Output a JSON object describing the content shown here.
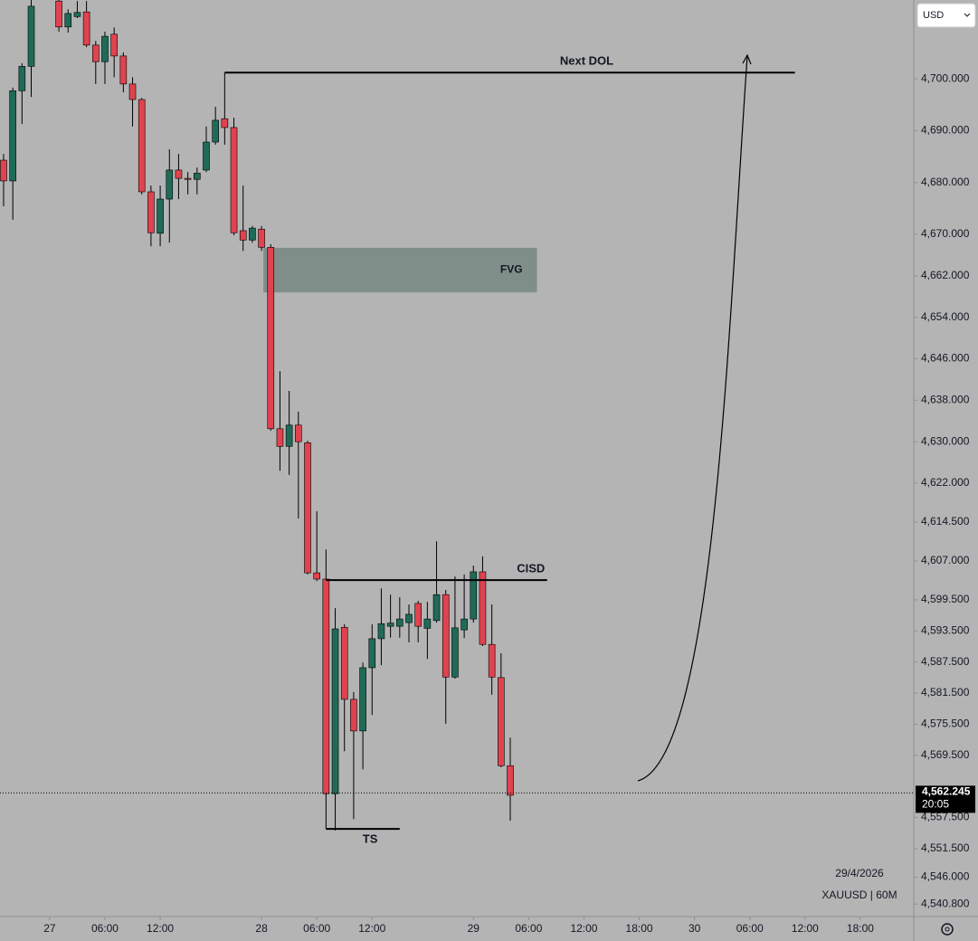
{
  "chart_data": {
    "type": "candlestick",
    "symbol": "XAUUSD | 60M",
    "date": "29/4/2026",
    "currency": "USD",
    "up_color": "#1f6b57",
    "down_color": "#e0434f",
    "xlim": [
      -0.39,
      98.8
    ],
    "ylim": [
      4538.4,
      4715.2
    ],
    "xticks": [
      {
        "value": 5,
        "label": "27"
      },
      {
        "value": 11,
        "label": "06:00"
      },
      {
        "value": 17,
        "label": "12:00"
      },
      {
        "value": 28,
        "label": "28"
      },
      {
        "value": 34,
        "label": "06:00"
      },
      {
        "value": 40,
        "label": "12:00"
      },
      {
        "value": 51,
        "label": "29"
      },
      {
        "value": 57,
        "label": "06:00"
      },
      {
        "value": 63,
        "label": "12:00"
      },
      {
        "value": 69,
        "label": "18:00"
      },
      {
        "value": 75,
        "label": "30"
      },
      {
        "value": 81,
        "label": "06:00"
      },
      {
        "value": 87,
        "label": "12:00"
      },
      {
        "value": 93,
        "label": "18:00"
      }
    ],
    "yticks": [
      {
        "value": 4700,
        "label": "4,700.000"
      },
      {
        "value": 4690,
        "label": "4,690.000"
      },
      {
        "value": 4680,
        "label": "4,680.000"
      },
      {
        "value": 4670,
        "label": "4,670.000"
      },
      {
        "value": 4662,
        "label": "4,662.000"
      },
      {
        "value": 4654,
        "label": "4,654.000"
      },
      {
        "value": 4646,
        "label": "4,646.000"
      },
      {
        "value": 4638,
        "label": "4,638.000"
      },
      {
        "value": 4630,
        "label": "4,630.000"
      },
      {
        "value": 4622,
        "label": "4,622.000"
      },
      {
        "value": 4614.5,
        "label": "4,614.500"
      },
      {
        "value": 4607,
        "label": "4,607.000"
      },
      {
        "value": 4599.5,
        "label": "4,599.500"
      },
      {
        "value": 4593.5,
        "label": "4,593.500"
      },
      {
        "value": 4587.5,
        "label": "4,587.500"
      },
      {
        "value": 4581.5,
        "label": "4,581.500"
      },
      {
        "value": 4575.5,
        "label": "4,575.500"
      },
      {
        "value": 4569.5,
        "label": "4,569.500"
      },
      {
        "value": 4557.5,
        "label": "4,557.500"
      },
      {
        "value": 4551.5,
        "label": "4,551.500"
      },
      {
        "value": 4546,
        "label": "4,546.000"
      },
      {
        "value": 4540.8,
        "label": "4,540.800"
      }
    ],
    "candles": [
      {
        "x": 0,
        "open": 4684.3,
        "high": 4685.5,
        "low": 4675.4,
        "close": 4680.3
      },
      {
        "x": 1,
        "open": 4680.3,
        "high": 4698.3,
        "low": 4672.8,
        "close": 4697.7
      },
      {
        "x": 2,
        "open": 4697.7,
        "high": 4703.0,
        "low": 4691.3,
        "close": 4702.4
      },
      {
        "x": 3,
        "open": 4702.4,
        "high": 4716,
        "low": 4696.5,
        "close": 4714
      },
      {
        "x": 6,
        "open": 4715,
        "high": 4716,
        "low": 4709.1,
        "close": 4710.0
      },
      {
        "x": 7,
        "open": 4710.0,
        "high": 4713.4,
        "low": 4708.9,
        "close": 4712.6
      },
      {
        "x": 8,
        "open": 4712.0,
        "high": 4715,
        "low": 4711.7,
        "close": 4712.8
      },
      {
        "x": 9,
        "open": 4712.9,
        "high": 4715,
        "low": 4706.1,
        "close": 4706.5
      },
      {
        "x": 10,
        "open": 4706.5,
        "high": 4707.3,
        "low": 4699.0,
        "close": 4703.3
      },
      {
        "x": 11,
        "open": 4703.3,
        "high": 4709.1,
        "low": 4699.0,
        "close": 4708.2
      },
      {
        "x": 12,
        "open": 4708.6,
        "high": 4709.9,
        "low": 4700.3,
        "close": 4704.4
      },
      {
        "x": 13,
        "open": 4704.4,
        "high": 4705.1,
        "low": 4697.4,
        "close": 4699.0
      },
      {
        "x": 14,
        "open": 4699.0,
        "high": 4700.3,
        "low": 4690.8,
        "close": 4696.0
      },
      {
        "x": 15,
        "open": 4696.0,
        "high": 4696.3,
        "low": 4677.7,
        "close": 4678.2
      },
      {
        "x": 16,
        "open": 4678.2,
        "high": 4679.4,
        "low": 4667.7,
        "close": 4670.3
      },
      {
        "x": 17,
        "open": 4670.2,
        "high": 4679.4,
        "low": 4667.7,
        "close": 4676.8
      },
      {
        "x": 18,
        "open": 4676.8,
        "high": 4686.4,
        "low": 4668.4,
        "close": 4682.4
      },
      {
        "x": 19,
        "open": 4682.4,
        "high": 4685.5,
        "low": 4676.8,
        "close": 4680.8
      },
      {
        "x": 20,
        "open": 4680.8,
        "high": 4682.0,
        "low": 4677.7,
        "close": 4680.6
      },
      {
        "x": 21,
        "open": 4680.6,
        "high": 4682.9,
        "low": 4677.7,
        "close": 4681.8
      },
      {
        "x": 22,
        "open": 4682.4,
        "high": 4690.8,
        "low": 4682.0,
        "close": 4687.8
      },
      {
        "x": 23,
        "open": 4687.8,
        "high": 4694.6,
        "low": 4687.3,
        "close": 4692.0
      },
      {
        "x": 24,
        "open": 4692.3,
        "high": 4701.2,
        "low": 4687.3,
        "close": 4690.6
      },
      {
        "x": 25,
        "open": 4690.6,
        "high": 4692.5,
        "low": 4669.8,
        "close": 4670.3
      },
      {
        "x": 26,
        "open": 4670.7,
        "high": 4679.4,
        "low": 4666.8,
        "close": 4668.9
      },
      {
        "x": 27,
        "open": 4668.9,
        "high": 4671.6,
        "low": 4668.4,
        "close": 4671.2
      },
      {
        "x": 28,
        "open": 4671.0,
        "high": 4671.6,
        "low": 4666.8,
        "close": 4667.5
      },
      {
        "x": 29,
        "open": 4667.5,
        "high": 4668.1,
        "low": 4632.1,
        "close": 4632.5
      },
      {
        "x": 30,
        "open": 4632.5,
        "high": 4643.6,
        "low": 4624.4,
        "close": 4629.1
      },
      {
        "x": 31,
        "open": 4629.1,
        "high": 4639.8,
        "low": 4623.6,
        "close": 4633.2
      },
      {
        "x": 32,
        "open": 4633.2,
        "high": 4635.8,
        "low": 4615.2,
        "close": 4630.0
      },
      {
        "x": 33,
        "open": 4629.8,
        "high": 4630.2,
        "low": 4604.4,
        "close": 4604.7
      },
      {
        "x": 34,
        "open": 4604.7,
        "high": 4616.6,
        "low": 4603.1,
        "close": 4603.5
      },
      {
        "x": 35,
        "open": 4603.5,
        "high": 4609.2,
        "low": 4555.3,
        "close": 4562.1
      },
      {
        "x": 36,
        "open": 4562.1,
        "high": 4597.9,
        "low": 4555.0,
        "close": 4593.9
      },
      {
        "x": 37,
        "open": 4594.2,
        "high": 4594.8,
        "low": 4570.3,
        "close": 4580.3
      },
      {
        "x": 38,
        "open": 4580.3,
        "high": 4581.7,
        "low": 4557.2,
        "close": 4574.2
      },
      {
        "x": 39,
        "open": 4574.2,
        "high": 4587.4,
        "low": 4566.8,
        "close": 4586.4
      },
      {
        "x": 40,
        "open": 4586.4,
        "high": 4594.8,
        "low": 4577.3,
        "close": 4592.0
      },
      {
        "x": 41,
        "open": 4592.0,
        "high": 4601.7,
        "low": 4586.9,
        "close": 4594.9
      },
      {
        "x": 42,
        "open": 4594.4,
        "high": 4600.5,
        "low": 4592.2,
        "close": 4595.0
      },
      {
        "x": 43,
        "open": 4594.4,
        "high": 4600.0,
        "low": 4592.2,
        "close": 4595.8
      },
      {
        "x": 44,
        "open": 4595.1,
        "high": 4598.6,
        "low": 4591.3,
        "close": 4596.7
      },
      {
        "x": 45,
        "open": 4598.8,
        "high": 4599.3,
        "low": 4591.3,
        "close": 4594.4
      },
      {
        "x": 46,
        "open": 4594.0,
        "high": 4599.1,
        "low": 4588.1,
        "close": 4595.8
      },
      {
        "x": 47,
        "open": 4595.5,
        "high": 4610.8,
        "low": 4595.1,
        "close": 4600.5
      },
      {
        "x": 48,
        "open": 4600.5,
        "high": 4601.4,
        "low": 4575.6,
        "close": 4584.6
      },
      {
        "x": 49,
        "open": 4584.6,
        "high": 4604.0,
        "low": 4584.3,
        "close": 4594.1
      },
      {
        "x": 50,
        "open": 4593.7,
        "high": 4604.4,
        "low": 4592.1,
        "close": 4595.8
      },
      {
        "x": 51,
        "open": 4595.8,
        "high": 4606.1,
        "low": 4595.1,
        "close": 4604.9
      },
      {
        "x": 52,
        "open": 4604.9,
        "high": 4607.9,
        "low": 4590.6,
        "close": 4590.9
      },
      {
        "x": 53,
        "open": 4590.9,
        "high": 4598.6,
        "low": 4581.2,
        "close": 4584.6
      },
      {
        "x": 54,
        "open": 4584.5,
        "high": 4589.2,
        "low": 4567.2,
        "close": 4567.5
      },
      {
        "x": 55,
        "open": 4567.5,
        "high": 4572.9,
        "low": 4556.9,
        "close": 4561.8
      }
    ],
    "levels": [
      {
        "text": "Next DOL",
        "y": 4701.2,
        "x": [
          24,
          85.9
        ]
      },
      {
        "text": "CISD",
        "y": 4603.3,
        "x": [
          35,
          59
        ]
      },
      {
        "text": "TS",
        "y": 4555.3,
        "x": [
          35,
          43
        ]
      }
    ],
    "zone": {
      "text": "FVG",
      "y": [
        4658.8,
        4667.4
      ],
      "x": [
        28.2,
        57.9
      ]
    },
    "last_price": {
      "value": 4562.245,
      "label": "4,562.245",
      "countdown": "20:05"
    }
  }
}
